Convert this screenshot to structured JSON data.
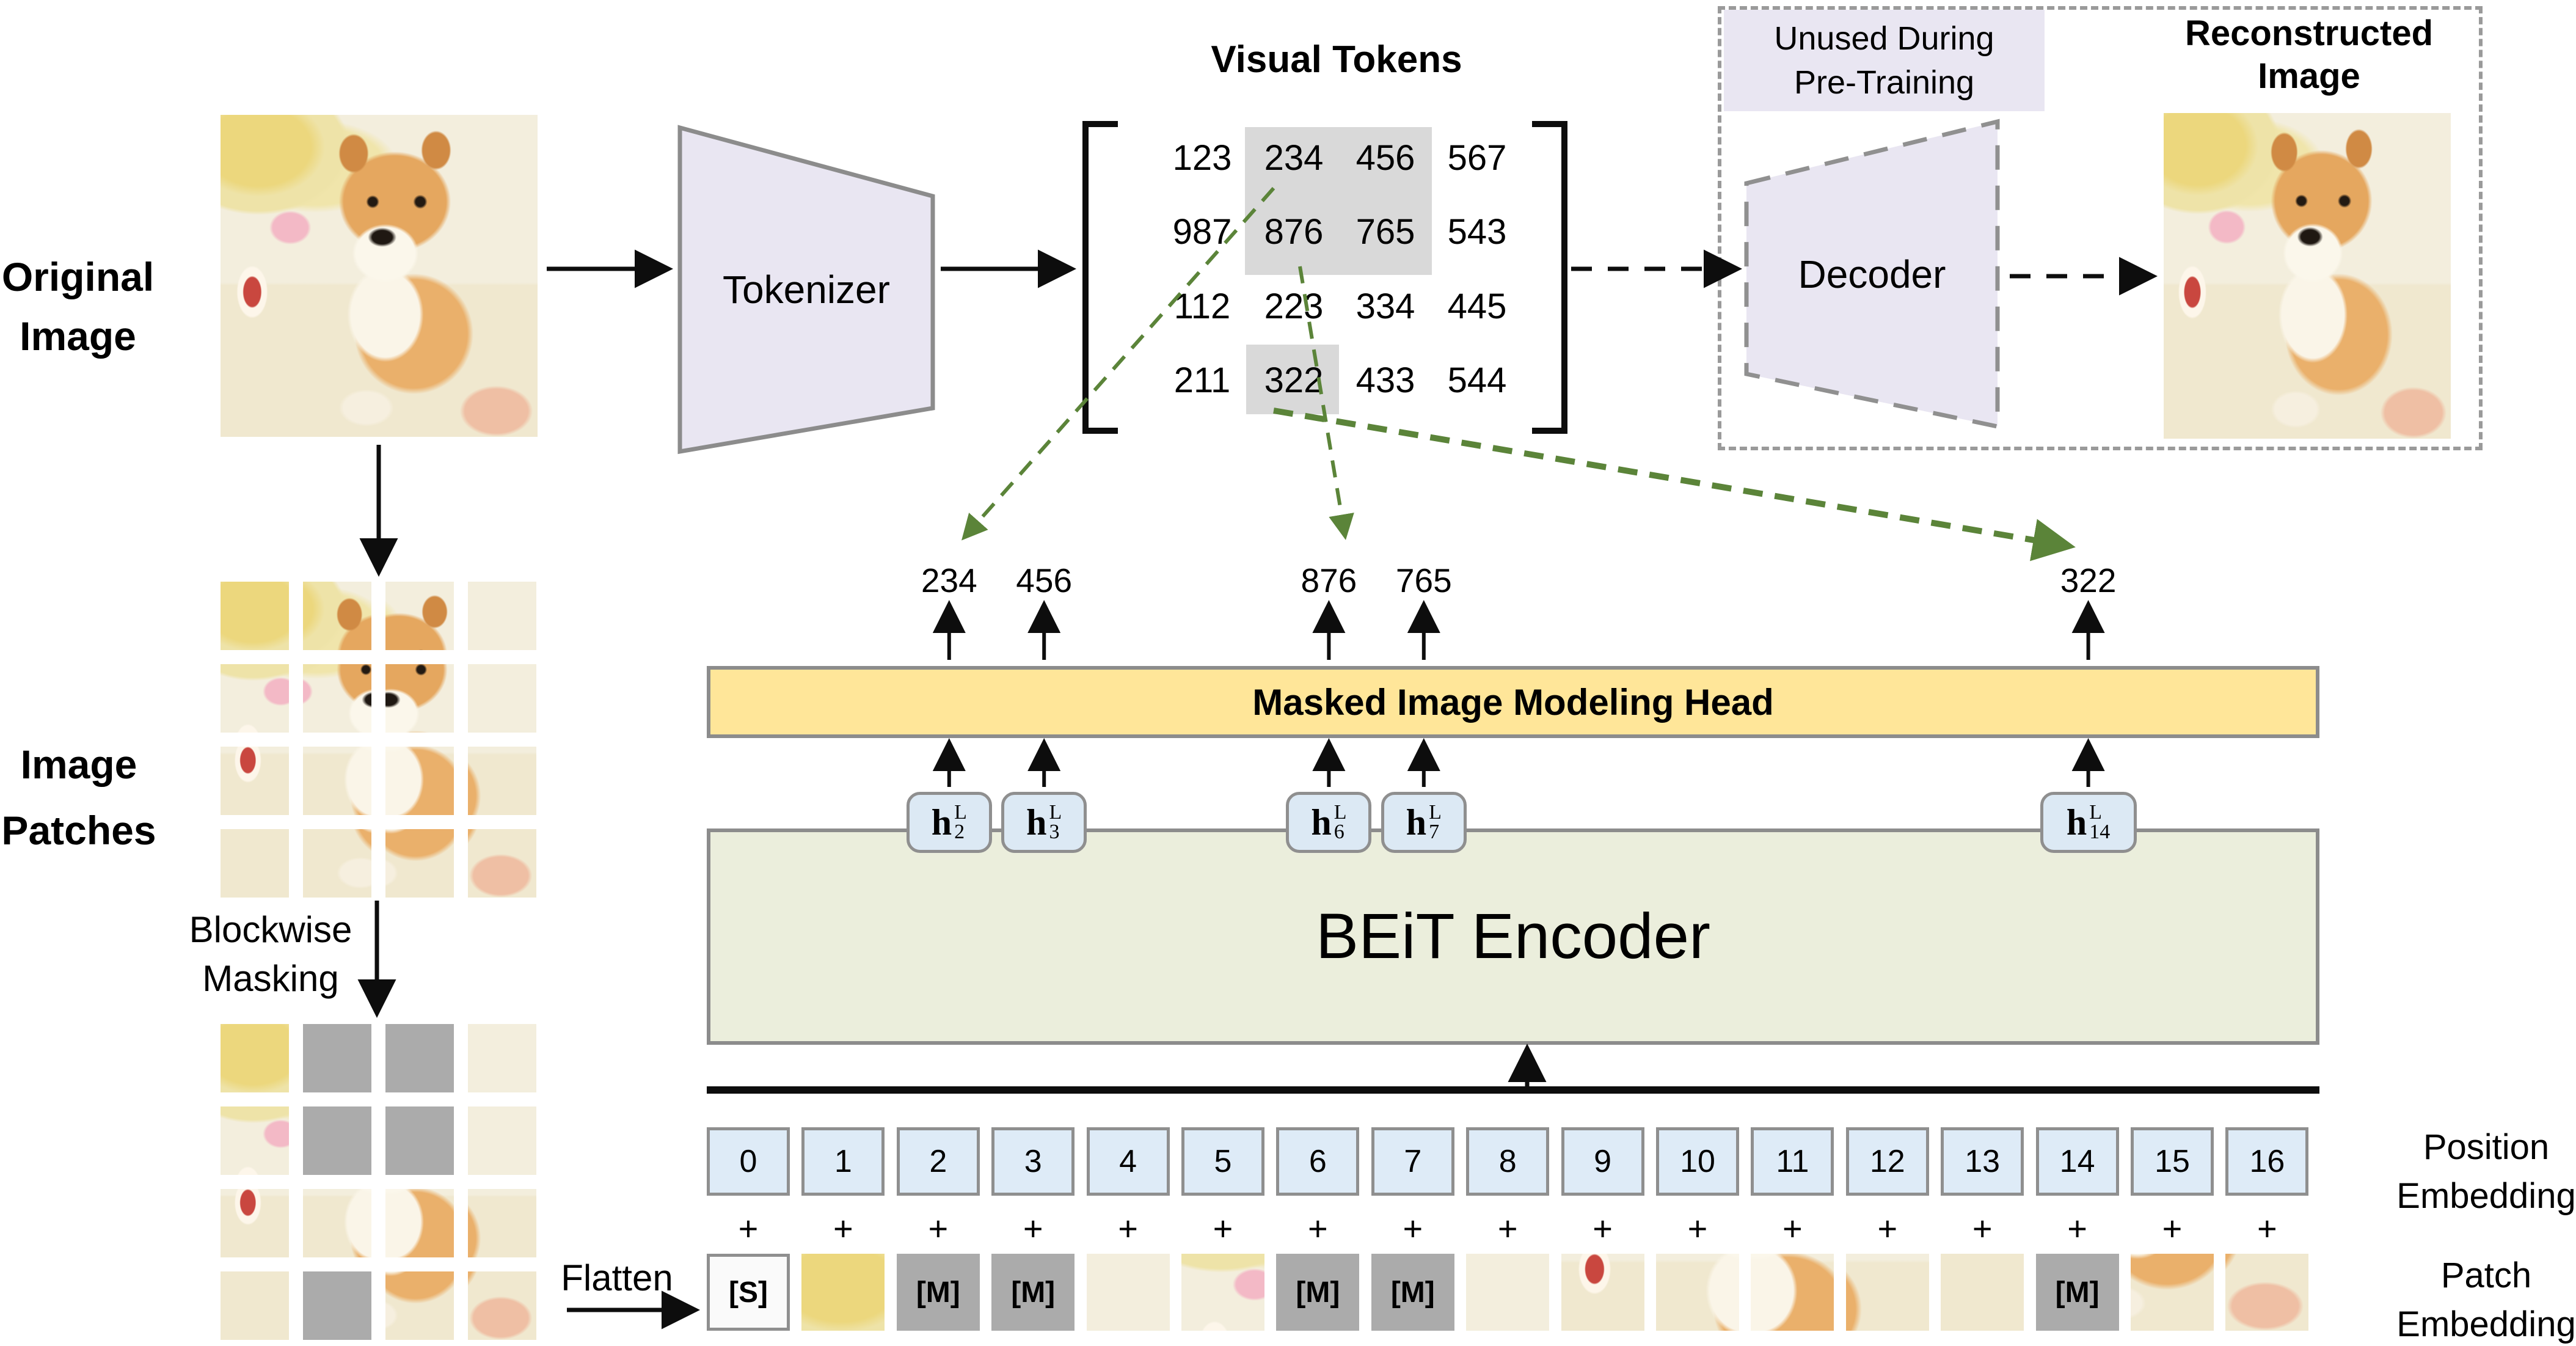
{
  "labels": {
    "original_image": [
      "Original",
      "Image"
    ],
    "image_patches": [
      "Image",
      "Patches"
    ],
    "blockwise_masking": [
      "Blockwise",
      "Masking"
    ],
    "flatten": "Flatten",
    "tokenizer": "Tokenizer",
    "decoder": "Decoder",
    "unused_during": [
      "Unused During",
      "Pre-Training"
    ],
    "reconstructed_image": [
      "Reconstructed",
      "Image"
    ],
    "visual_tokens_title": "Visual Tokens",
    "mim_head": "Masked Image Modeling Head",
    "encoder": "BEiT Encoder",
    "position_embedding": [
      "Position",
      "Embedding"
    ],
    "patch_embedding": [
      "Patch",
      "Embedding"
    ]
  },
  "visual_tokens": {
    "rows": [
      [
        "123",
        "234",
        "456",
        "567"
      ],
      [
        "987",
        "876",
        "765",
        "543"
      ],
      [
        "112",
        "223",
        "334",
        "445"
      ],
      [
        "211",
        "322",
        "433",
        "544"
      ]
    ]
  },
  "masked_positions": [
    2,
    3,
    6,
    7,
    14
  ],
  "outputs": [
    "234",
    "456",
    "876",
    "765",
    "322"
  ],
  "h_tokens": [
    {
      "base": "h",
      "sup": "L",
      "sub": "2"
    },
    {
      "base": "h",
      "sup": "L",
      "sub": "3"
    },
    {
      "base": "h",
      "sup": "L",
      "sub": "6"
    },
    {
      "base": "h",
      "sup": "L",
      "sub": "7"
    },
    {
      "base": "h",
      "sup": "L",
      "sub": "14"
    }
  ],
  "position_indices": [
    "0",
    "1",
    "2",
    "3",
    "4",
    "5",
    "6",
    "7",
    "8",
    "9",
    "10",
    "11",
    "12",
    "13",
    "14",
    "15",
    "16"
  ],
  "tokens": {
    "start": "[S]",
    "mask": "[M]",
    "plus": "+"
  },
  "colors": {
    "mim_head_fill": "#ffe699",
    "encoder_fill": "#ebeedc",
    "position_box_fill": "#deebf7",
    "h_box_fill": "#dce9f4",
    "trapezoid_fill": "#e9e6f2",
    "unused_label_fill": "#e9e6f2",
    "mask_gray": "#ababab",
    "highlight_gray": "#d9d9d9",
    "arrow_green": "#5b8439",
    "border_gray": "#8f8f8f"
  }
}
